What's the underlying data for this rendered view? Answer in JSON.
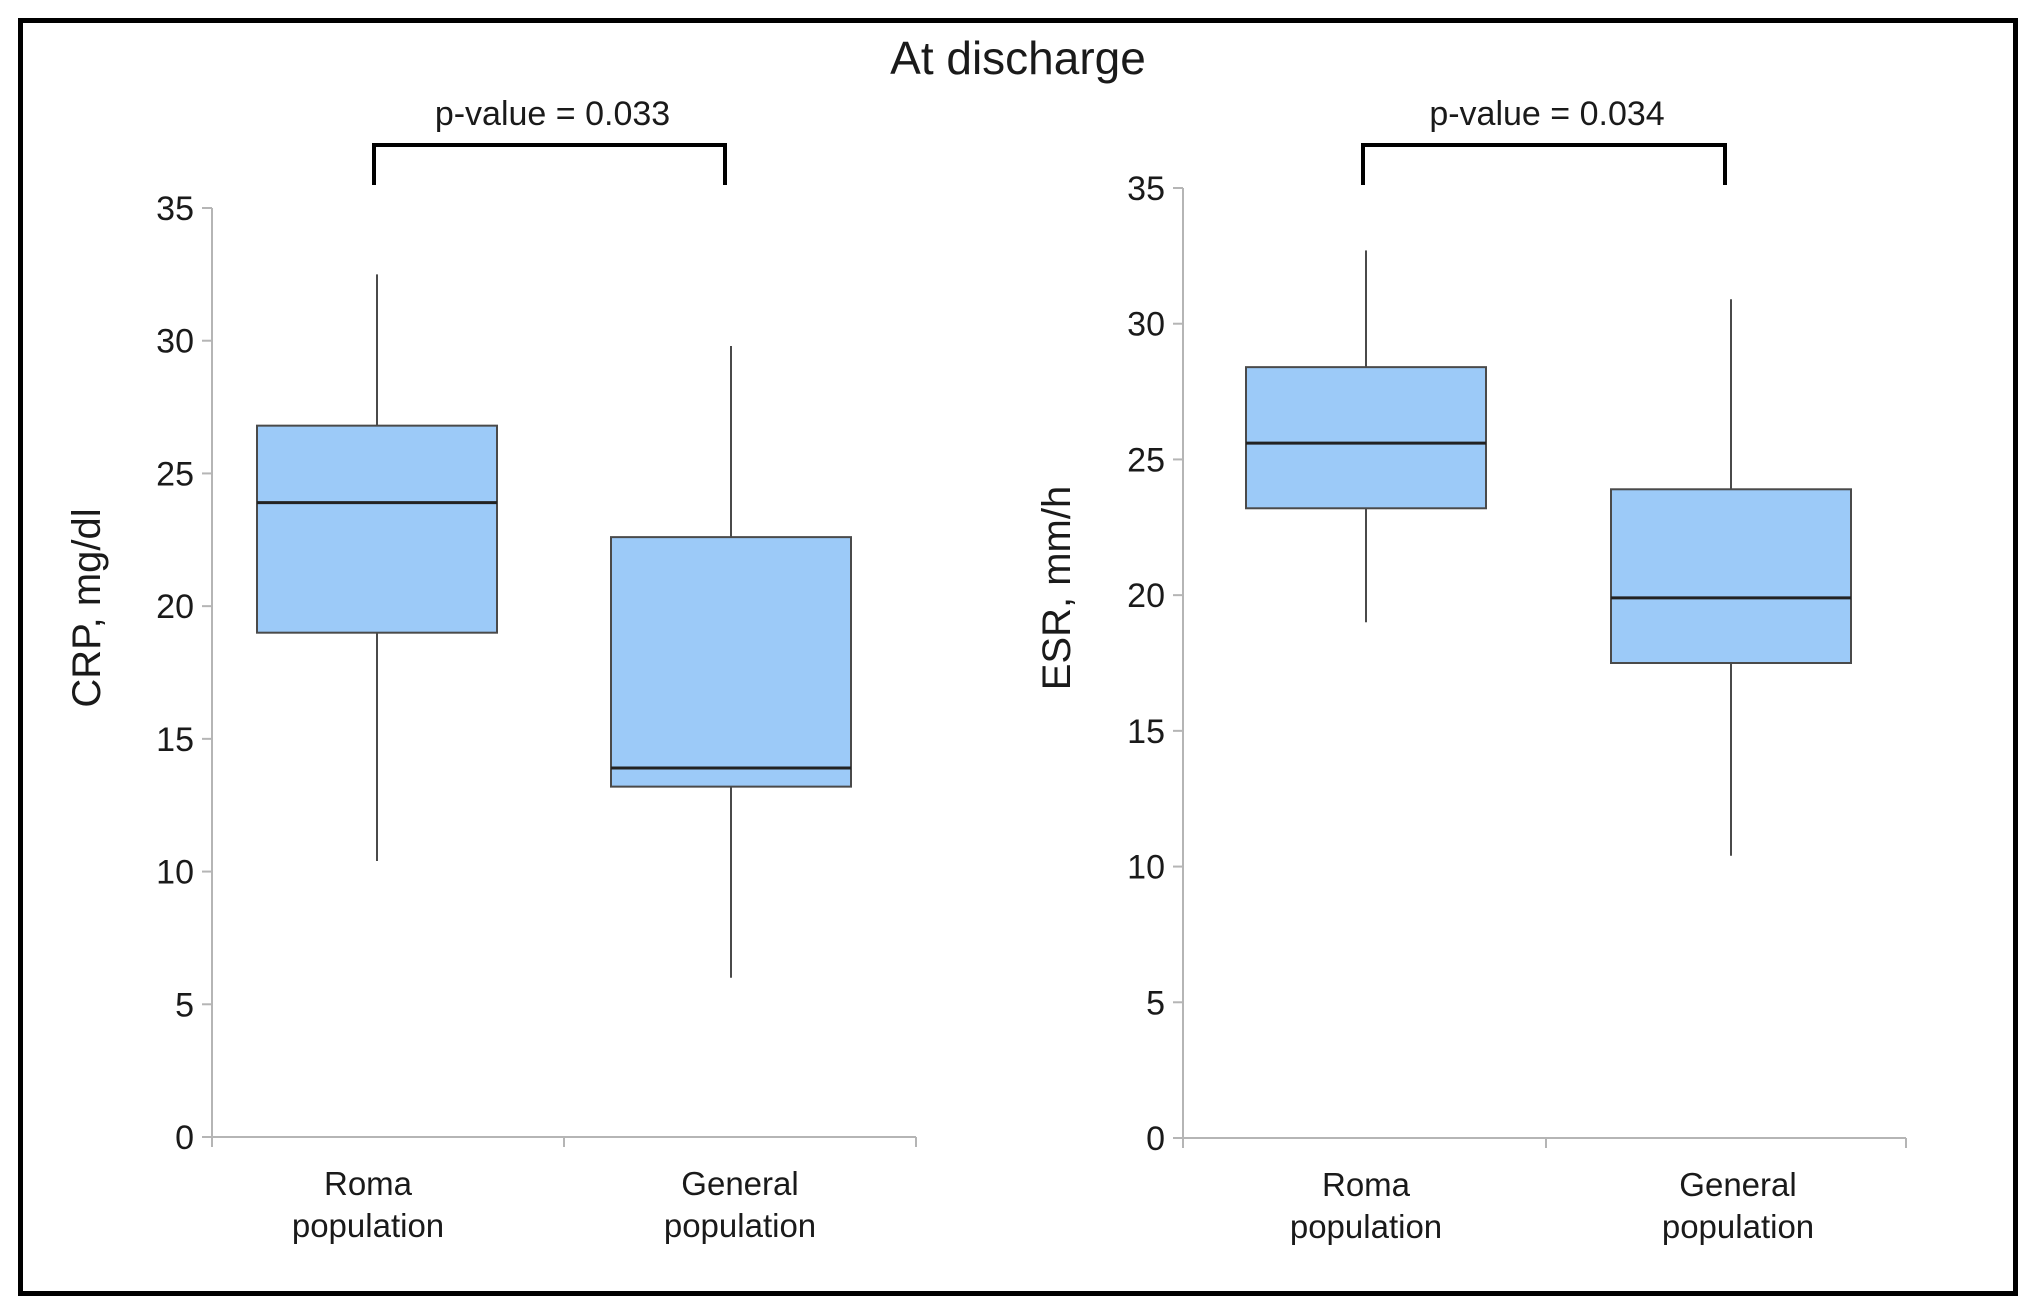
{
  "title": "At discharge",
  "colors": {
    "box_fill": "#9ccaf8",
    "box_stroke": "#4a4a4a",
    "axis": "#b5b5b5",
    "text": "#1a1a1a"
  },
  "chart_data": [
    {
      "type": "boxplot",
      "ylabel": "CRP, mg/dl",
      "ylim": [
        0,
        35
      ],
      "yticks": [
        0,
        5,
        10,
        15,
        20,
        25,
        30,
        35
      ],
      "categories": [
        [
          "Roma",
          "population"
        ],
        [
          "General",
          "population"
        ]
      ],
      "boxes": [
        {
          "whisker_low": 10.4,
          "q1": 19,
          "median": 23.9,
          "q3": 26.8,
          "whisker_high": 32.5
        },
        {
          "whisker_low": 6,
          "q1": 13.2,
          "median": 13.9,
          "q3": 22.6,
          "whisker_high": 29.8
        }
      ],
      "annotation": {
        "text": "p-value = 0.033"
      }
    },
    {
      "type": "boxplot",
      "ylabel": "ESR, mm/h",
      "ylim": [
        0,
        35
      ],
      "yticks": [
        0,
        5,
        10,
        15,
        20,
        25,
        30,
        35
      ],
      "categories": [
        [
          "Roma",
          "population"
        ],
        [
          "General",
          "population"
        ]
      ],
      "boxes": [
        {
          "whisker_low": 19,
          "q1": 23.2,
          "median": 25.6,
          "q3": 28.4,
          "whisker_high": 32.7
        },
        {
          "whisker_low": 10.4,
          "q1": 17.5,
          "median": 19.9,
          "q3": 23.9,
          "whisker_high": 30.9
        }
      ],
      "annotation": {
        "text": "p-value = 0.034"
      }
    }
  ]
}
